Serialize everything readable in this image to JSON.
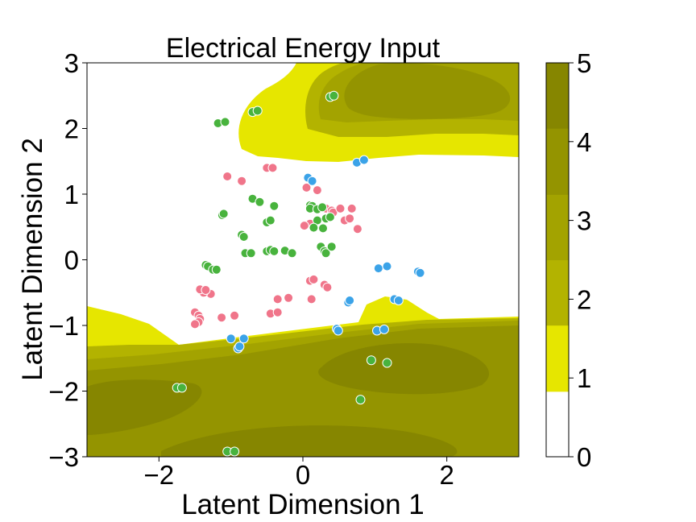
{
  "chart_data": {
    "type": "scatter",
    "title": "Electrical Energy Input",
    "xlabel": "Latent Dimension 1",
    "ylabel": "Latent Dimension 2",
    "xlim": [
      -3,
      3
    ],
    "ylim": [
      -3,
      3
    ],
    "x_ticks": [
      -2,
      0,
      2
    ],
    "y_ticks": [
      -3,
      -2,
      -1,
      0,
      1,
      2,
      3
    ],
    "grid": false,
    "legend": "none",
    "background": {
      "type": "filled-contour",
      "levels": [
        0,
        0.83,
        1.67,
        2.5,
        3.33,
        4.17,
        5.0
      ],
      "level_colors": [
        "#ffffff",
        "#e6e600",
        "#b3b300",
        "#a3a300",
        "#949400",
        "#868600",
        "#787800"
      ]
    },
    "colorbar": {
      "range": [
        0,
        5
      ],
      "ticks": [
        0,
        1,
        2,
        3,
        4,
        5
      ],
      "placement": "right"
    },
    "series": [
      {
        "color": "#f0758a",
        "points": [
          [
            -1.05,
            1.27
          ],
          [
            -0.85,
            1.2
          ],
          [
            -0.5,
            1.4
          ],
          [
            -0.42,
            1.4
          ],
          [
            0.05,
            1.1
          ],
          [
            0.2,
            1.06
          ],
          [
            0.32,
            0.78
          ],
          [
            0.4,
            0.75
          ],
          [
            0.42,
            0.72
          ],
          [
            0.52,
            0.78
          ],
          [
            0.58,
            0.6
          ],
          [
            0.65,
            0.63
          ],
          [
            0.68,
            0.78
          ],
          [
            0.76,
            0.47
          ],
          [
            0.1,
            0.55
          ],
          [
            0.02,
            0.52
          ],
          [
            0.1,
            -0.32
          ],
          [
            0.15,
            -0.3
          ],
          [
            0.3,
            -0.38
          ],
          [
            0.34,
            -0.42
          ],
          [
            -0.2,
            -0.58
          ],
          [
            -0.35,
            -0.6
          ],
          [
            0.12,
            -0.6
          ],
          [
            -0.45,
            -0.82
          ],
          [
            -0.35,
            -0.8
          ],
          [
            -0.95,
            -0.85
          ],
          [
            -1.13,
            -0.88
          ],
          [
            -1.28,
            -0.52
          ],
          [
            -1.38,
            -0.5
          ],
          [
            -1.43,
            -0.45
          ],
          [
            -1.35,
            -0.46
          ],
          [
            -1.5,
            -0.8
          ],
          [
            -1.45,
            -0.85
          ],
          [
            -1.43,
            -0.9
          ],
          [
            -1.45,
            -0.95
          ],
          [
            -1.5,
            -0.98
          ]
        ]
      },
      {
        "color": "#48b33d",
        "points": [
          [
            0.38,
            2.48
          ],
          [
            0.43,
            2.5
          ],
          [
            -0.7,
            2.25
          ],
          [
            -0.63,
            2.27
          ],
          [
            -1.18,
            2.08
          ],
          [
            -1.08,
            2.1
          ],
          [
            -0.7,
            0.93
          ],
          [
            -0.6,
            0.88
          ],
          [
            -0.5,
            0.57
          ],
          [
            -0.45,
            0.6
          ],
          [
            -0.4,
            0.82
          ],
          [
            0.1,
            0.83
          ],
          [
            0.13,
            0.82
          ],
          [
            0.1,
            0.78
          ],
          [
            0.2,
            0.77
          ],
          [
            0.27,
            0.8
          ],
          [
            0.2,
            0.6
          ],
          [
            0.15,
            0.49
          ],
          [
            0.28,
            0.48
          ],
          [
            0.32,
            0.63
          ],
          [
            0.38,
            0.65
          ],
          [
            -1.12,
            0.68
          ],
          [
            -1.1,
            0.7
          ],
          [
            -0.85,
            0.38
          ],
          [
            -0.82,
            0.35
          ],
          [
            -0.8,
            0.1
          ],
          [
            -0.72,
            0.1
          ],
          [
            -0.5,
            0.13
          ],
          [
            -0.45,
            0.15
          ],
          [
            -0.4,
            0.13
          ],
          [
            -0.25,
            0.14
          ],
          [
            -0.15,
            0.1
          ],
          [
            0.25,
            0.2
          ],
          [
            0.3,
            0.13
          ],
          [
            0.32,
            0.1
          ],
          [
            0.4,
            0.2
          ],
          [
            -1.35,
            -0.08
          ],
          [
            -1.32,
            -0.1
          ],
          [
            -1.25,
            -0.15
          ],
          [
            -1.2,
            -0.15
          ],
          [
            0.95,
            -1.53
          ],
          [
            1.17,
            -1.57
          ],
          [
            -1.75,
            -1.95
          ],
          [
            -1.68,
            -1.95
          ],
          [
            0.8,
            -2.13
          ],
          [
            -1.05,
            -2.92
          ],
          [
            -0.95,
            -2.92
          ]
        ]
      },
      {
        "color": "#3ba3e8",
        "points": [
          [
            0.07,
            1.25
          ],
          [
            0.13,
            1.2
          ],
          [
            0.75,
            1.48
          ],
          [
            0.85,
            1.52
          ],
          [
            1.05,
            -0.13
          ],
          [
            1.17,
            -0.1
          ],
          [
            1.6,
            -0.18
          ],
          [
            1.63,
            -0.2
          ],
          [
            1.27,
            -0.6
          ],
          [
            1.33,
            -0.62
          ],
          [
            0.63,
            -0.65
          ],
          [
            0.65,
            -0.62
          ],
          [
            0.47,
            -1.05
          ],
          [
            0.49,
            -1.08
          ],
          [
            1.03,
            -1.08
          ],
          [
            1.13,
            -1.06
          ],
          [
            -1.0,
            -1.2
          ],
          [
            -0.82,
            -1.2
          ],
          [
            -0.9,
            -1.35
          ],
          [
            -0.88,
            -1.32
          ]
        ]
      }
    ]
  }
}
